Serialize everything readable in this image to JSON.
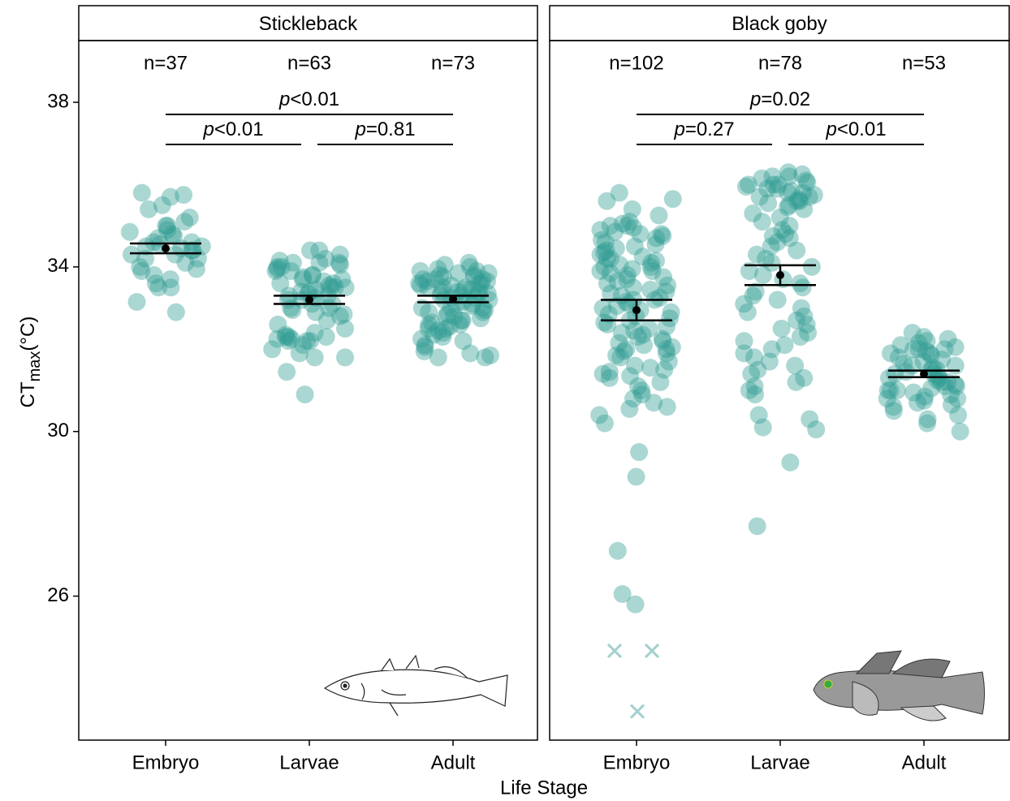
{
  "chart_data": [
    {
      "type": "strip",
      "title": "Stickleback",
      "x_label": "Life Stage",
      "y_label": [
        "CT",
        "max",
        "(°C)"
      ],
      "categories": [
        "Embryo",
        "Larvae",
        "Adult"
      ],
      "color": "#2e9a90",
      "ylim": [
        22.5,
        39.5
      ],
      "yticks": [
        26,
        30,
        34,
        38
      ],
      "n_labels": [
        "n=37",
        "n=63",
        "n=73"
      ],
      "means": [
        34.45,
        33.2,
        33.22
      ],
      "errors": [
        0.12,
        0.1,
        0.08
      ],
      "comparisons": [
        {
          "from": "Embryo",
          "to": "Larvae",
          "label": "p<0.01"
        },
        {
          "from": "Larvae",
          "to": "Adult",
          "label": "p=0.81"
        },
        {
          "from": "Embryo",
          "to": "Adult",
          "label": "p<0.01"
        }
      ],
      "points": [
        [
          35.8,
          35.75,
          35.7,
          35.5,
          35.4,
          35.2,
          35.1,
          35.0,
          35.0,
          34.9,
          34.85,
          34.8,
          34.75,
          34.7,
          34.6,
          34.6,
          34.55,
          34.5,
          34.5,
          34.45,
          34.4,
          34.4,
          34.3,
          34.3,
          34.2,
          34.2,
          34.1,
          34.0,
          33.95,
          33.9,
          33.8,
          33.7,
          33.6,
          33.5,
          33.5,
          33.15,
          32.9
        ],
        [
          34.4,
          34.4,
          34.3,
          34.2,
          34.15,
          34.1,
          34.1,
          34.1,
          34.05,
          34.0,
          34.0,
          33.95,
          33.9,
          33.9,
          33.8,
          33.8,
          33.75,
          33.7,
          33.7,
          33.6,
          33.6,
          33.55,
          33.5,
          33.5,
          33.5,
          33.45,
          33.4,
          33.4,
          33.35,
          33.3,
          33.3,
          33.25,
          33.2,
          33.2,
          33.1,
          33.1,
          33.0,
          33.0,
          32.95,
          32.9,
          32.85,
          32.8,
          32.7,
          32.6,
          32.5,
          32.4,
          32.35,
          32.3,
          32.3,
          32.3,
          32.25,
          32.25,
          32.2,
          32.2,
          32.2,
          32.1,
          32.0,
          31.9,
          31.8,
          31.8,
          31.45,
          30.9,
          33.65
        ],
        [
          34.1,
          34.05,
          34.0,
          33.95,
          33.9,
          33.9,
          33.85,
          33.85,
          33.8,
          33.8,
          33.75,
          33.75,
          33.7,
          33.7,
          33.7,
          33.65,
          33.65,
          33.6,
          33.6,
          33.55,
          33.55,
          33.5,
          33.5,
          33.5,
          33.45,
          33.45,
          33.4,
          33.4,
          33.35,
          33.35,
          33.3,
          33.3,
          33.25,
          33.25,
          33.2,
          33.2,
          33.15,
          33.1,
          33.1,
          33.05,
          33.0,
          33.0,
          32.95,
          32.9,
          32.9,
          32.85,
          32.8,
          32.8,
          32.75,
          32.7,
          32.7,
          32.65,
          32.6,
          32.6,
          32.55,
          32.5,
          32.5,
          32.45,
          32.4,
          32.35,
          32.3,
          32.25,
          32.2,
          32.1,
          32.05,
          31.95,
          31.9,
          31.85,
          31.8,
          31.8,
          33.6,
          33.4,
          33.0
        ]
      ]
    },
    {
      "type": "strip",
      "title": "Black goby",
      "categories": [
        "Embryo",
        "Larvae",
        "Adult"
      ],
      "color": "#2e9a90",
      "ylim": [
        22.5,
        39.5
      ],
      "n_labels": [
        "n=102",
        "n=78",
        "n=53"
      ],
      "means": [
        32.95,
        33.8,
        31.4
      ],
      "errors": [
        0.25,
        0.24,
        0.08
      ],
      "comparisons": [
        {
          "from": "Embryo",
          "to": "Larvae",
          "label": "p=0.27"
        },
        {
          "from": "Larvae",
          "to": "Adult",
          "label": "p<0.01"
        },
        {
          "from": "Embryo",
          "to": "Adult",
          "label": "p=0.02"
        }
      ],
      "points": [
        [
          35.8,
          35.65,
          35.6,
          35.4,
          35.25,
          35.1,
          35.05,
          35.0,
          35.0,
          34.95,
          34.9,
          34.85,
          34.8,
          34.75,
          34.7,
          34.65,
          34.6,
          34.55,
          34.5,
          34.45,
          34.4,
          34.35,
          34.3,
          34.25,
          34.2,
          34.15,
          34.1,
          34.05,
          34.0,
          34.0,
          33.95,
          33.9,
          33.85,
          33.8,
          33.75,
          33.7,
          33.65,
          33.6,
          33.55,
          33.5,
          33.45,
          33.4,
          33.35,
          33.3,
          33.25,
          33.2,
          33.15,
          33.1,
          33.05,
          33.0,
          32.95,
          32.9,
          32.85,
          32.8,
          32.75,
          32.7,
          32.65,
          32.6,
          32.55,
          32.5,
          32.45,
          32.4,
          32.35,
          32.3,
          32.25,
          32.2,
          32.15,
          32.1,
          32.05,
          32.0,
          31.95,
          31.9,
          31.85,
          31.8,
          31.7,
          31.6,
          31.55,
          31.5,
          31.45,
          31.4,
          31.35,
          31.3,
          31.2,
          31.1,
          31.0,
          30.9,
          30.8,
          30.7,
          30.6,
          30.55,
          30.4,
          30.2,
          29.5,
          28.9,
          27.1,
          26.05,
          25.8,
          34.8,
          33.9,
          33.2,
          32.0,
          34.2
        ],
        [
          36.3,
          36.25,
          36.2,
          36.2,
          36.15,
          36.1,
          36.05,
          36.0,
          36.0,
          35.95,
          35.9,
          35.9,
          35.85,
          35.8,
          35.8,
          35.75,
          35.7,
          35.7,
          35.65,
          35.6,
          35.55,
          35.5,
          35.45,
          35.4,
          35.3,
          35.2,
          35.1,
          35.0,
          34.9,
          34.8,
          34.75,
          34.7,
          34.6,
          34.5,
          34.4,
          34.3,
          34.2,
          34.1,
          34.0,
          33.9,
          33.8,
          33.7,
          33.6,
          33.5,
          33.4,
          33.3,
          33.2,
          33.1,
          33.0,
          32.9,
          32.8,
          32.7,
          32.6,
          32.5,
          32.4,
          32.3,
          32.2,
          32.1,
          32.0,
          31.9,
          31.8,
          31.7,
          31.6,
          31.5,
          31.4,
          31.3,
          31.2,
          31.1,
          31.0,
          30.9,
          30.4,
          30.3,
          30.1,
          30.05,
          29.25,
          27.7,
          35.6,
          36.0
        ],
        [
          32.4,
          32.3,
          32.25,
          32.2,
          32.15,
          32.1,
          32.05,
          32.0,
          32.0,
          31.95,
          31.9,
          31.85,
          31.8,
          31.75,
          31.7,
          31.65,
          31.6,
          31.55,
          31.5,
          31.5,
          31.45,
          31.4,
          31.4,
          31.35,
          31.3,
          31.3,
          31.25,
          31.2,
          31.2,
          31.15,
          31.1,
          31.1,
          31.05,
          31.0,
          31.0,
          30.95,
          30.9,
          30.85,
          30.8,
          30.8,
          30.75,
          30.7,
          30.65,
          30.6,
          30.5,
          30.4,
          30.3,
          30.2,
          30.0,
          31.9,
          32.0,
          31.6,
          31.0
        ]
      ],
      "excluded": [
        [
          24.67,
          24.67,
          23.2
        ],
        [],
        []
      ]
    }
  ]
}
